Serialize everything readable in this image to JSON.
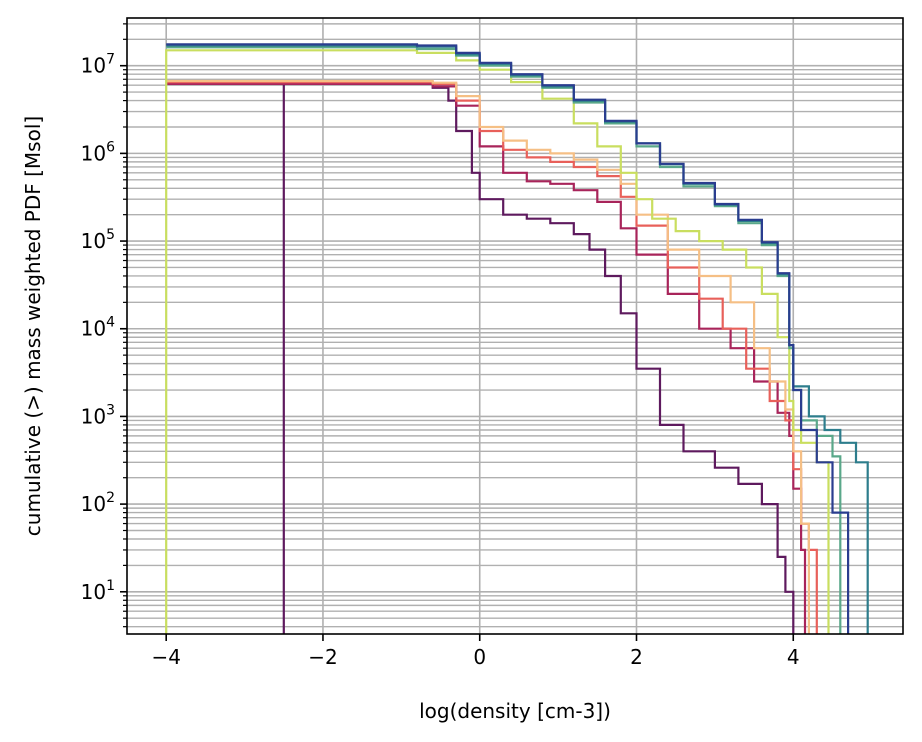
{
  "chart_data": {
    "type": "line",
    "title": "",
    "xlabel": "log(density [cm-3])",
    "ylabel": "cumulative (>) mass weighted PDF [Msol]",
    "xlim": [
      -4.5,
      5.4
    ],
    "ylim": [
      3.3,
      35000000
    ],
    "y_scale": "log",
    "grid": "major and minor",
    "legend": "none",
    "x_ticks": [
      {
        "value": -4,
        "label": "−4"
      },
      {
        "value": -2,
        "label": "−2"
      },
      {
        "value": 0,
        "label": "0"
      },
      {
        "value": 2,
        "label": "2"
      },
      {
        "value": 4,
        "label": "4"
      }
    ],
    "y_ticks": [
      {
        "value": 10,
        "base": "10",
        "exp": "1"
      },
      {
        "value": 100,
        "base": "10",
        "exp": "2"
      },
      {
        "value": 1000,
        "base": "10",
        "exp": "3"
      },
      {
        "value": 10000,
        "base": "10",
        "exp": "4"
      },
      {
        "value": 100000,
        "base": "10",
        "exp": "5"
      },
      {
        "value": 1000000,
        "base": "10",
        "exp": "6"
      },
      {
        "value": 10000000,
        "base": "10",
        "exp": "7"
      }
    ],
    "series": [
      {
        "color": "#5e1a5e",
        "x": [
          -2.5,
          -2.5,
          -1.0,
          -0.6,
          -0.4,
          -0.3,
          -0.1,
          0.0,
          0.3,
          0.6,
          0.9,
          1.2,
          1.4,
          1.6,
          1.8,
          2.0,
          2.3,
          2.6,
          3.0,
          3.3,
          3.6,
          3.8,
          3.9,
          4.0,
          4.0
        ],
        "y": [
          0,
          6200000,
          6200000,
          5600000,
          4000000,
          1800000,
          600000,
          300000,
          200000,
          180000,
          160000,
          120000,
          80000,
          40000,
          15000,
          3500,
          800,
          400,
          260,
          170,
          100,
          25,
          10,
          5,
          0
        ]
      },
      {
        "color": "#a8245a",
        "x": [
          -4.0,
          -1.0,
          -0.6,
          -0.3,
          0.0,
          0.3,
          0.6,
          0.9,
          1.2,
          1.5,
          1.8,
          2.0,
          2.4,
          2.8,
          3.2,
          3.5,
          3.8,
          3.95,
          4.0,
          4.1,
          4.15,
          4.15
        ],
        "y": [
          6200000,
          6200000,
          5800000,
          3500000,
          1200000,
          600000,
          480000,
          450000,
          380000,
          280000,
          140000,
          70000,
          25000,
          10000,
          6000,
          2500,
          1100,
          600,
          150,
          30,
          8,
          0
        ]
      },
      {
        "color": "#e8605a",
        "x": [
          -4.0,
          -1.0,
          -0.6,
          -0.3,
          0.0,
          0.3,
          0.6,
          0.9,
          1.2,
          1.5,
          1.8,
          2.0,
          2.4,
          2.8,
          3.1,
          3.4,
          3.7,
          3.9,
          4.0,
          4.1,
          4.2,
          4.3,
          4.3
        ],
        "y": [
          6500000,
          6500000,
          6200000,
          4000000,
          1800000,
          1100000,
          900000,
          800000,
          700000,
          550000,
          320000,
          150000,
          50000,
          22000,
          10000,
          3500,
          1500,
          900,
          250,
          60,
          30,
          12,
          0
        ]
      },
      {
        "color": "#f5bf85",
        "x": [
          -4.0,
          -1.0,
          -0.6,
          -0.3,
          0.0,
          0.3,
          0.6,
          0.9,
          1.2,
          1.5,
          1.8,
          2.0,
          2.4,
          2.8,
          3.2,
          3.5,
          3.7,
          3.9,
          4.0,
          4.1,
          4.2,
          4.2
        ],
        "y": [
          6700000,
          6700000,
          6400000,
          4500000,
          2000000,
          1400000,
          1100000,
          1000000,
          850000,
          650000,
          450000,
          200000,
          80000,
          40000,
          20000,
          6000,
          2500,
          1200,
          400,
          60,
          10,
          0
        ]
      },
      {
        "color": "#c9de5f",
        "x": [
          -4.0,
          -4.0,
          -1.2,
          -0.8,
          -0.3,
          0.0,
          0.4,
          0.8,
          1.2,
          1.5,
          1.8,
          2.0,
          2.2,
          2.5,
          2.8,
          3.1,
          3.4,
          3.6,
          3.8,
          3.95,
          4.0,
          4.1,
          4.3,
          4.45,
          4.45
        ],
        "y": [
          0,
          15000000,
          15000000,
          14000000,
          11500000,
          9000000,
          6500000,
          4200000,
          2200000,
          1200000,
          600000,
          300000,
          180000,
          130000,
          100000,
          80000,
          50000,
          25000,
          8000,
          1500,
          700,
          500,
          300,
          60,
          0
        ]
      },
      {
        "color": "#5aa88a",
        "x": [
          -4.0,
          -1.2,
          -0.8,
          -0.3,
          0.0,
          0.4,
          0.8,
          1.2,
          1.6,
          2.0,
          2.3,
          2.6,
          3.0,
          3.3,
          3.6,
          3.8,
          3.95,
          4.0,
          4.1,
          4.3,
          4.5,
          4.6,
          4.6
        ],
        "y": [
          16200000,
          16200000,
          15500000,
          13000000,
          10000000,
          7500000,
          5600000,
          3800000,
          2200000,
          1200000,
          700000,
          420000,
          250000,
          160000,
          90000,
          40000,
          6000,
          2000,
          900,
          600,
          350,
          150,
          0
        ]
      },
      {
        "color": "#2d7d8c",
        "x": [
          -4.0,
          -1.2,
          -0.8,
          -0.3,
          0.0,
          0.4,
          0.8,
          1.2,
          1.6,
          2.0,
          2.3,
          2.6,
          3.0,
          3.3,
          3.6,
          3.8,
          3.95,
          4.0,
          4.2,
          4.4,
          4.6,
          4.8,
          4.95,
          4.95
        ],
        "y": [
          17000000,
          17000000,
          16500000,
          13500000,
          10500000,
          7800000,
          5800000,
          4000000,
          2300000,
          1300000,
          750000,
          450000,
          260000,
          170000,
          95000,
          42000,
          6500,
          2200,
          1000,
          700,
          500,
          300,
          130,
          0
        ]
      },
      {
        "color": "#2a3d8f",
        "x": [
          -4.0,
          -1.2,
          -0.8,
          -0.3,
          0.0,
          0.4,
          0.8,
          1.2,
          1.6,
          2.0,
          2.3,
          2.6,
          3.0,
          3.3,
          3.6,
          3.8,
          3.95,
          4.0,
          4.1,
          4.3,
          4.5,
          4.7,
          4.7
        ],
        "y": [
          17500000,
          17500000,
          17000000,
          14000000,
          10800000,
          8000000,
          6000000,
          4100000,
          2350000,
          1300000,
          760000,
          460000,
          265000,
          175000,
          97000,
          43000,
          6500,
          2000,
          700,
          300,
          80,
          15,
          0
        ]
      }
    ]
  }
}
